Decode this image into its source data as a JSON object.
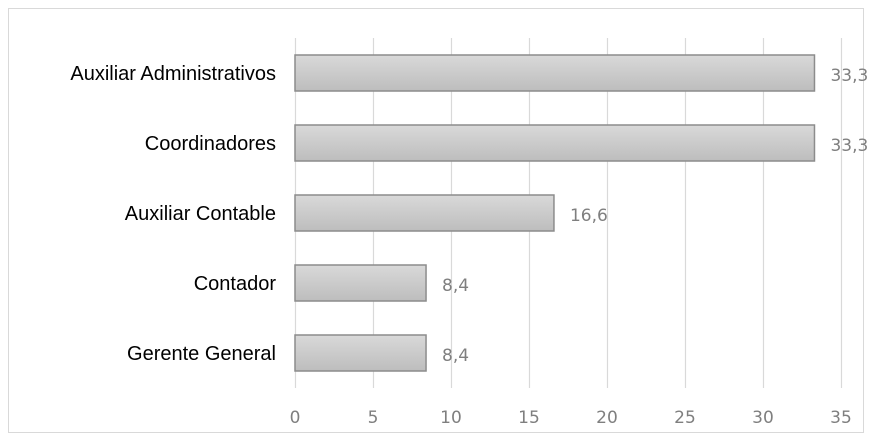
{
  "chart_data": {
    "type": "bar",
    "orientation": "horizontal",
    "categories": [
      "Auxiliar Administrativos",
      "Coordinadores",
      "Auxiliar Contable",
      "Contador",
      "Gerente General"
    ],
    "values": [
      33.3,
      33.3,
      16.6,
      8.4,
      8.4
    ],
    "data_labels": [
      "33,3",
      "33,3",
      "16,6",
      "8,4",
      "8,4"
    ],
    "xlim": [
      0,
      35
    ],
    "x_ticks": [
      0,
      5,
      10,
      15,
      20,
      25,
      30,
      35
    ],
    "x_tick_labels": [
      "0",
      "5",
      "10",
      "15",
      "20",
      "25",
      "30",
      "35"
    ],
    "grid": "vertical",
    "legend": "none",
    "title": "",
    "xlabel": "",
    "ylabel": "",
    "colors": {
      "bar_fill_top": "#d9d9d9",
      "bar_fill_bottom": "#bdbdbd",
      "bar_stroke": "#8c8c8c",
      "gridline": "#d9d9d9",
      "border": "#d9d9d9",
      "tick_text": "#7f7f7f",
      "category_text": "#000000"
    }
  }
}
